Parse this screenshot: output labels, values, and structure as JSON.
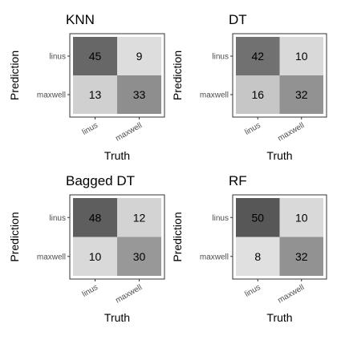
{
  "chart_data": [
    {
      "type": "heatmap",
      "title": "KNN",
      "xlabel": "Truth",
      "ylabel": "Prediction",
      "x_categories": [
        "linus",
        "maxwell"
      ],
      "y_categories": [
        "linus",
        "maxwell"
      ],
      "values": [
        [
          45,
          9
        ],
        [
          13,
          33
        ]
      ]
    },
    {
      "type": "heatmap",
      "title": "DT",
      "xlabel": "Truth",
      "ylabel": "Prediction",
      "x_categories": [
        "linus",
        "maxwell"
      ],
      "y_categories": [
        "linus",
        "maxwell"
      ],
      "values": [
        [
          42,
          10
        ],
        [
          16,
          32
        ]
      ]
    },
    {
      "type": "heatmap",
      "title": "Bagged DT",
      "xlabel": "Truth",
      "ylabel": "Prediction",
      "x_categories": [
        "linus",
        "maxwell"
      ],
      "y_categories": [
        "linus",
        "maxwell"
      ],
      "values": [
        [
          48,
          12
        ],
        [
          10,
          30
        ]
      ]
    },
    {
      "type": "heatmap",
      "title": "RF",
      "xlabel": "Truth",
      "ylabel": "Prediction",
      "x_categories": [
        "linus",
        "maxwell"
      ],
      "y_categories": [
        "linus",
        "maxwell"
      ],
      "values": [
        [
          50,
          10
        ],
        [
          8,
          32
        ]
      ]
    }
  ],
  "color_scale": {
    "low": "#e0e0e0",
    "high": "#575757"
  }
}
